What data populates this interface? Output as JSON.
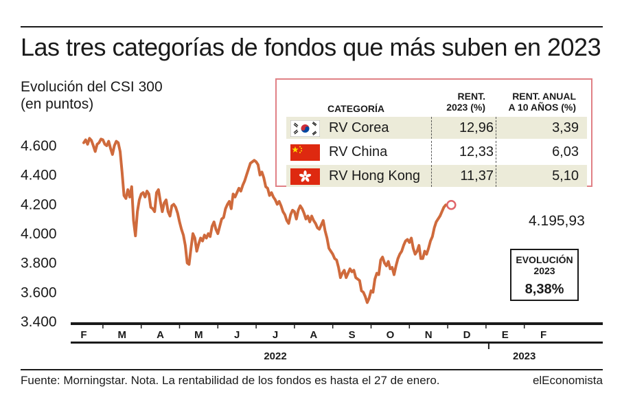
{
  "title": "Las tres categorías de fondos que más suben en 2023",
  "subtitle_line1": "Evolución del CSI 300",
  "subtitle_line2": "(en puntos)",
  "colors": {
    "line": "#cf6a3c",
    "legend_border": "#e08085",
    "row_shade": "#ecebd9",
    "marker": "#e0656a"
  },
  "legend": {
    "header_category": "CATEGORÍA",
    "header_rent_1": "RENT.",
    "header_rent_2": "2023 (%)",
    "header_annual_1": "RENT. ANUAL",
    "header_annual_2": "A 10 AÑOS (%)",
    "rows": [
      {
        "flag": "south-korea-flag-icon",
        "name": "RV Corea",
        "rent_2023": "12,96",
        "rent_10y": "3,39"
      },
      {
        "flag": "china-flag-icon",
        "name": "RV China",
        "rent_2023": "12,33",
        "rent_10y": "6,03"
      },
      {
        "flag": "hong-kong-flag-icon",
        "name": "RV Hong Kong",
        "rent_2023": "11,37",
        "rent_10y": "5,10"
      }
    ]
  },
  "evolution": {
    "label_1": "EVOLUCIÓN",
    "label_2": "2023",
    "value": "8,38%"
  },
  "last_value_label": "4.195,93",
  "source": "Fuente: Morningstar. Nota. La rentabilidad de los fondos es hasta el 27 de enero.",
  "brand": "elEconomista",
  "chart_data": {
    "type": "line",
    "title": "Evolución del CSI 300",
    "ylabel": "(en puntos)",
    "xlabel": "",
    "ylim": [
      3400,
      4700
    ],
    "y_ticks": [
      3400,
      3600,
      3800,
      4000,
      4200,
      4400,
      4600
    ],
    "y_tick_labels": [
      "3.400",
      "3.600",
      "3.800",
      "4.000",
      "4.200",
      "4.400",
      "4.600"
    ],
    "x_month_labels": [
      "F",
      "M",
      "A",
      "M",
      "J",
      "J",
      "A",
      "S",
      "O",
      "N",
      "D",
      "E",
      "F"
    ],
    "x_year_labels": [
      {
        "label": "2022",
        "from_month": 0,
        "to_month": 11
      },
      {
        "label": "2023",
        "from_month": 11,
        "to_month": 13
      }
    ],
    "grid": false,
    "series": [
      {
        "values": [
          [
            0.0,
            4620
          ],
          [
            0.05,
            4640
          ],
          [
            0.1,
            4610
          ],
          [
            0.15,
            4650
          ],
          [
            0.2,
            4635
          ],
          [
            0.25,
            4600
          ],
          [
            0.3,
            4560
          ],
          [
            0.35,
            4610
          ],
          [
            0.4,
            4620
          ],
          [
            0.45,
            4645
          ],
          [
            0.5,
            4640
          ],
          [
            0.55,
            4610
          ],
          [
            0.6,
            4600
          ],
          [
            0.65,
            4630
          ],
          [
            0.7,
            4580
          ],
          [
            0.75,
            4540
          ],
          [
            0.8,
            4600
          ],
          [
            0.85,
            4630
          ],
          [
            0.9,
            4620
          ],
          [
            0.95,
            4560
          ],
          [
            1.0,
            4420
          ],
          [
            1.05,
            4260
          ],
          [
            1.1,
            4240
          ],
          [
            1.15,
            4300
          ],
          [
            1.2,
            4250
          ],
          [
            1.25,
            4320
          ],
          [
            1.3,
            4090
          ],
          [
            1.35,
            3985
          ],
          [
            1.4,
            4150
          ],
          [
            1.45,
            4230
          ],
          [
            1.5,
            4270
          ],
          [
            1.55,
            4280
          ],
          [
            1.6,
            4250
          ],
          [
            1.65,
            4290
          ],
          [
            1.7,
            4270
          ],
          [
            1.75,
            4180
          ],
          [
            1.8,
            4170
          ],
          [
            1.85,
            4150
          ],
          [
            1.9,
            4280
          ],
          [
            1.95,
            4300
          ],
          [
            2.0,
            4220
          ],
          [
            2.05,
            4150
          ],
          [
            2.1,
            4210
          ],
          [
            2.15,
            4230
          ],
          [
            2.2,
            4150
          ],
          [
            2.25,
            4120
          ],
          [
            2.3,
            4190
          ],
          [
            2.35,
            4200
          ],
          [
            2.4,
            4180
          ],
          [
            2.45,
            4140
          ],
          [
            2.5,
            4080
          ],
          [
            2.55,
            4030
          ],
          [
            2.6,
            3990
          ],
          [
            2.65,
            3920
          ],
          [
            2.7,
            3800
          ],
          [
            2.75,
            3790
          ],
          [
            2.8,
            3900
          ],
          [
            2.85,
            4000
          ],
          [
            2.9,
            3970
          ],
          [
            2.95,
            3880
          ],
          [
            3.0,
            3930
          ],
          [
            3.05,
            3970
          ],
          [
            3.1,
            3950
          ],
          [
            3.15,
            3990
          ],
          [
            3.2,
            3970
          ],
          [
            3.25,
            4000
          ],
          [
            3.3,
            3980
          ],
          [
            3.35,
            4050
          ],
          [
            3.4,
            4080
          ],
          [
            3.45,
            4030
          ],
          [
            3.5,
            4000
          ],
          [
            3.55,
            4050
          ],
          [
            3.6,
            4100
          ],
          [
            3.65,
            4110
          ],
          [
            3.7,
            4170
          ],
          [
            3.75,
            4200
          ],
          [
            3.8,
            4220
          ],
          [
            3.85,
            4170
          ],
          [
            3.9,
            4270
          ],
          [
            3.95,
            4250
          ],
          [
            4.0,
            4280
          ],
          [
            4.05,
            4310
          ],
          [
            4.1,
            4290
          ],
          [
            4.15,
            4330
          ],
          [
            4.2,
            4360
          ],
          [
            4.25,
            4400
          ],
          [
            4.3,
            4440
          ],
          [
            4.35,
            4480
          ],
          [
            4.4,
            4490
          ],
          [
            4.45,
            4500
          ],
          [
            4.5,
            4490
          ],
          [
            4.55,
            4470
          ],
          [
            4.6,
            4400
          ],
          [
            4.65,
            4420
          ],
          [
            4.7,
            4380
          ],
          [
            4.75,
            4320
          ],
          [
            4.8,
            4310
          ],
          [
            4.85,
            4260
          ],
          [
            4.9,
            4280
          ],
          [
            4.95,
            4250
          ],
          [
            5.0,
            4230
          ],
          [
            5.05,
            4200
          ],
          [
            5.1,
            4220
          ],
          [
            5.15,
            4190
          ],
          [
            5.2,
            4150
          ],
          [
            5.25,
            4130
          ],
          [
            5.3,
            4090
          ],
          [
            5.35,
            4070
          ],
          [
            5.4,
            4130
          ],
          [
            5.45,
            4160
          ],
          [
            5.5,
            4150
          ],
          [
            5.55,
            4100
          ],
          [
            5.6,
            4160
          ],
          [
            5.65,
            4190
          ],
          [
            5.7,
            4170
          ],
          [
            5.75,
            4140
          ],
          [
            5.8,
            4100
          ],
          [
            5.85,
            4120
          ],
          [
            5.9,
            4080
          ],
          [
            5.95,
            4120
          ],
          [
            6.0,
            4090
          ],
          [
            6.05,
            4070
          ],
          [
            6.1,
            4040
          ],
          [
            6.15,
            4030
          ],
          [
            6.2,
            4060
          ],
          [
            6.25,
            4090
          ],
          [
            6.3,
            4020
          ],
          [
            6.35,
            3970
          ],
          [
            6.4,
            3900
          ],
          [
            6.45,
            3880
          ],
          [
            6.5,
            3860
          ],
          [
            6.55,
            3830
          ],
          [
            6.6,
            3820
          ],
          [
            6.65,
            3770
          ],
          [
            6.7,
            3700
          ],
          [
            6.75,
            3730
          ],
          [
            6.8,
            3750
          ],
          [
            6.85,
            3700
          ],
          [
            6.9,
            3730
          ],
          [
            6.95,
            3760
          ],
          [
            7.0,
            3740
          ],
          [
            7.05,
            3750
          ],
          [
            7.1,
            3700
          ],
          [
            7.15,
            3690
          ],
          [
            7.2,
            3680
          ],
          [
            7.25,
            3610
          ],
          [
            7.3,
            3600
          ],
          [
            7.35,
            3570
          ],
          [
            7.4,
            3530
          ],
          [
            7.45,
            3560
          ],
          [
            7.5,
            3610
          ],
          [
            7.55,
            3600
          ],
          [
            7.6,
            3690
          ],
          [
            7.65,
            3730
          ],
          [
            7.7,
            3720
          ],
          [
            7.75,
            3820
          ],
          [
            7.8,
            3840
          ],
          [
            7.85,
            3800
          ],
          [
            7.9,
            3780
          ],
          [
            7.95,
            3810
          ],
          [
            8.0,
            3760
          ],
          [
            8.05,
            3770
          ],
          [
            8.1,
            3720
          ],
          [
            8.15,
            3780
          ],
          [
            8.2,
            3830
          ],
          [
            8.25,
            3860
          ],
          [
            8.3,
            3880
          ],
          [
            8.35,
            3920
          ],
          [
            8.4,
            3950
          ],
          [
            8.45,
            3960
          ],
          [
            8.5,
            3940
          ],
          [
            8.55,
            3970
          ],
          [
            8.6,
            3900
          ],
          [
            8.65,
            3860
          ],
          [
            8.7,
            3880
          ],
          [
            8.75,
            3920
          ],
          [
            8.8,
            3830
          ],
          [
            8.85,
            3830
          ],
          [
            8.9,
            3880
          ],
          [
            8.95,
            3860
          ],
          [
            9.0,
            3900
          ],
          [
            9.05,
            3950
          ],
          [
            9.1,
            3980
          ],
          [
            9.15,
            4040
          ],
          [
            9.2,
            4080
          ],
          [
            9.25,
            4100
          ],
          [
            9.3,
            4120
          ],
          [
            9.35,
            4150
          ],
          [
            9.4,
            4180
          ],
          [
            9.45,
            4195.93
          ]
        ]
      }
    ]
  }
}
